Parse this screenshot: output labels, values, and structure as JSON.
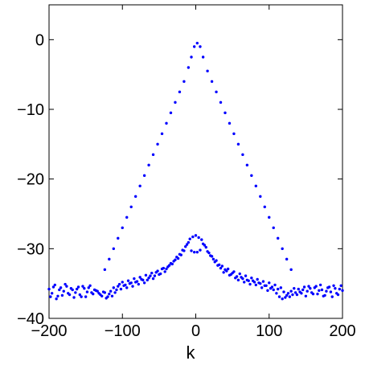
{
  "chart_data": {
    "type": "scatter",
    "title": "",
    "xlabel": "k",
    "ylabel": "",
    "xlim": [
      -200,
      200
    ],
    "ylim": [
      -40,
      5
    ],
    "xticks": [
      "−200",
      "−100",
      "0",
      "100",
      "200"
    ],
    "yticks": [
      "0",
      "−10",
      "−20",
      "−30",
      "−40"
    ],
    "grid": false,
    "legend": "none",
    "marker_color": "#0000ff",
    "series": [
      {
        "description": "triangular peak envelope",
        "x": [
          -124,
          -118,
          -112,
          -106,
          -100,
          -94,
          -88,
          -82,
          -76,
          -70,
          -64,
          -58,
          -52,
          -46,
          -40,
          -34,
          -28,
          -22,
          -16,
          -10,
          -6,
          -2,
          2,
          6,
          10,
          16,
          22,
          28,
          34,
          40,
          46,
          52,
          58,
          64,
          70,
          76,
          82,
          88,
          94,
          100,
          106,
          112,
          118,
          124,
          130
        ],
        "y": [
          -33,
          -31.5,
          -30,
          -28.5,
          -27,
          -25.5,
          -24,
          -22.5,
          -21,
          -19.5,
          -18,
          -16.5,
          -15,
          -13.5,
          -12,
          -10.5,
          -9,
          -7.5,
          -6,
          -4,
          -2.5,
          -1,
          -0.5,
          -1,
          -2.5,
          -4.5,
          -6,
          -7.5,
          -9,
          -10.5,
          -12,
          -13.5,
          -15,
          -16.5,
          -18,
          -19.5,
          -21,
          -22.5,
          -24,
          -25.5,
          -27,
          -28.5,
          -30,
          -31.5,
          -33
        ]
      },
      {
        "description": "noise floor with central bump",
        "x": [
          -200,
          -196,
          -192,
          -188,
          -184,
          -180,
          -176,
          -172,
          -168,
          -164,
          -160,
          -156,
          -152,
          -148,
          -144,
          -140,
          -136,
          -132,
          -128,
          -124,
          -120,
          -116,
          -112,
          -108,
          -104,
          -100,
          -96,
          -92,
          -88,
          -84,
          -80,
          -76,
          -72,
          -68,
          -64,
          -60,
          -56,
          -52,
          -48,
          -44,
          -40,
          -36,
          -32,
          -28,
          -24,
          -20,
          -16,
          -12,
          -8,
          -4,
          0,
          4,
          8,
          12,
          16,
          20,
          24,
          28,
          32,
          36,
          40,
          44,
          48,
          52,
          56,
          60,
          64,
          68,
          72,
          76,
          80,
          84,
          88,
          92,
          96,
          100,
          104,
          108,
          112,
          116,
          120,
          124,
          128,
          132,
          136,
          140,
          144,
          148,
          152,
          156,
          160,
          164,
          168,
          172,
          176,
          180,
          184,
          188,
          192,
          196,
          200
        ],
        "y": [
          -35.8,
          -36.4,
          -35.2,
          -36.8,
          -35.6,
          -36.1,
          -35.4,
          -36.6,
          -35.9,
          -36.3,
          -35.5,
          -36.9,
          -35.7,
          -36.2,
          -35.3,
          -36.5,
          -36,
          -36.4,
          -36.8,
          -36.3,
          -36.9,
          -36.1,
          -35.6,
          -35.9,
          -35.1,
          -34.8,
          -35.2,
          -34.6,
          -34.9,
          -34.3,
          -34.7,
          -34.1,
          -34.5,
          -33.8,
          -34.2,
          -33.5,
          -33.9,
          -33.2,
          -33.6,
          -32.8,
          -32.9,
          -32.4,
          -32.2,
          -31.6,
          -31.4,
          -30.9,
          -30.3,
          -29.4,
          -28.6,
          -28.3,
          -28.1,
          -28.4,
          -28.7,
          -29.5,
          -30.4,
          -31,
          -31.5,
          -31.7,
          -32.3,
          -32.5,
          -33,
          -32.9,
          -33.7,
          -33.3,
          -34,
          -33.6,
          -34.3,
          -33.9,
          -34.6,
          -34.2,
          -34.8,
          -34.4,
          -35,
          -34.7,
          -35.3,
          -34.9,
          -35.5,
          -35.2,
          -35.8,
          -35.6,
          -36.2,
          -36.7,
          -36.9,
          -36.6,
          -36.3,
          -35.8,
          -36.4,
          -35.5,
          -36.1,
          -35.7,
          -36.5,
          -35.4,
          -36,
          -35.9,
          -36.7,
          -35.6,
          -36.2,
          -35.3,
          -36.4,
          -35.8,
          -36
        ]
      },
      {
        "description": "noise floor second scatter band",
        "x": [
          -198,
          -194,
          -190,
          -186,
          -182,
          -178,
          -174,
          -170,
          -166,
          -162,
          -158,
          -154,
          -150,
          -146,
          -142,
          -138,
          -134,
          -130,
          -126,
          -122,
          -118,
          -114,
          -110,
          -106,
          -102,
          -98,
          -94,
          -90,
          -86,
          -82,
          -78,
          -74,
          -70,
          -66,
          -62,
          -58,
          -54,
          -50,
          -46,
          -42,
          -38,
          -34,
          -30,
          -26,
          -22,
          -18,
          -14,
          -10,
          -6,
          -2,
          2,
          6,
          10,
          14,
          18,
          22,
          26,
          30,
          34,
          38,
          42,
          46,
          50,
          54,
          58,
          62,
          66,
          70,
          74,
          78,
          82,
          86,
          90,
          94,
          98,
          102,
          106,
          110,
          114,
          118,
          122,
          126,
          130,
          134,
          138,
          142,
          146,
          150,
          154,
          158,
          162,
          166,
          170,
          174,
          178,
          182,
          186,
          190,
          194,
          198
        ],
        "y": [
          -36.9,
          -35.5,
          -37.2,
          -35.9,
          -36.7,
          -35.1,
          -36.4,
          -35.7,
          -37,
          -35.8,
          -36.6,
          -35.4,
          -36.9,
          -35.6,
          -36.3,
          -35.9,
          -36.1,
          -36.6,
          -36.2,
          -37.1,
          -36.5,
          -36.8,
          -36.3,
          -35.4,
          -35.8,
          -35.3,
          -35.6,
          -35,
          -35.4,
          -34.8,
          -35.1,
          -34.4,
          -34.9,
          -34.5,
          -33.9,
          -34.3,
          -33.4,
          -33.7,
          -32.9,
          -33.3,
          -32.6,
          -32.1,
          -31.8,
          -31.2,
          -30.8,
          -30.2,
          -29.7,
          -29.1,
          -30.3,
          -30.5,
          -30.5,
          -30.2,
          -29.3,
          -29.8,
          -30.6,
          -31.1,
          -31.9,
          -32.4,
          -32.8,
          -33.4,
          -33.2,
          -33.8,
          -33.5,
          -34.2,
          -34.5,
          -34.1,
          -34.8,
          -34.5,
          -35.1,
          -34.6,
          -35.2,
          -34.9,
          -35.6,
          -35.3,
          -36,
          -35.7,
          -35.9,
          -36.4,
          -36.9,
          -37.2,
          -37,
          -36.4,
          -36.1,
          -35.7,
          -36.6,
          -36.2,
          -35.9,
          -36.8,
          -35.4,
          -36.3,
          -35.6,
          -36.5,
          -35.2,
          -36.8,
          -36.1,
          -35.5,
          -36.9,
          -35.7,
          -36.6,
          -35.3
        ]
      }
    ]
  }
}
